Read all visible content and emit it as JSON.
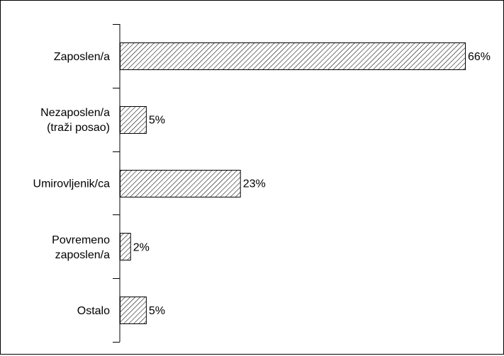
{
  "chart_data": {
    "type": "bar",
    "orientation": "horizontal",
    "categories": [
      [
        "Zaposlen/a"
      ],
      [
        "Nezaposlen/a",
        "(traži posao)"
      ],
      [
        "Umirovljenik/ca"
      ],
      [
        "Povremeno",
        "zaposlen/a"
      ],
      [
        "Ostalo"
      ]
    ],
    "values": [
      66,
      5,
      23,
      2,
      5
    ],
    "data_labels": [
      "66%",
      "5%",
      "23%",
      "2%",
      "5%"
    ],
    "unit": "%",
    "xlim": [
      0,
      66
    ],
    "grid": false,
    "legend": "none",
    "bar_fill": "diagonal-hatch",
    "colors": {
      "bar_stroke": "#000000",
      "hatch": "#000000",
      "bar_background": "#ffffff",
      "axis": "#000000",
      "text": "#000000"
    }
  }
}
